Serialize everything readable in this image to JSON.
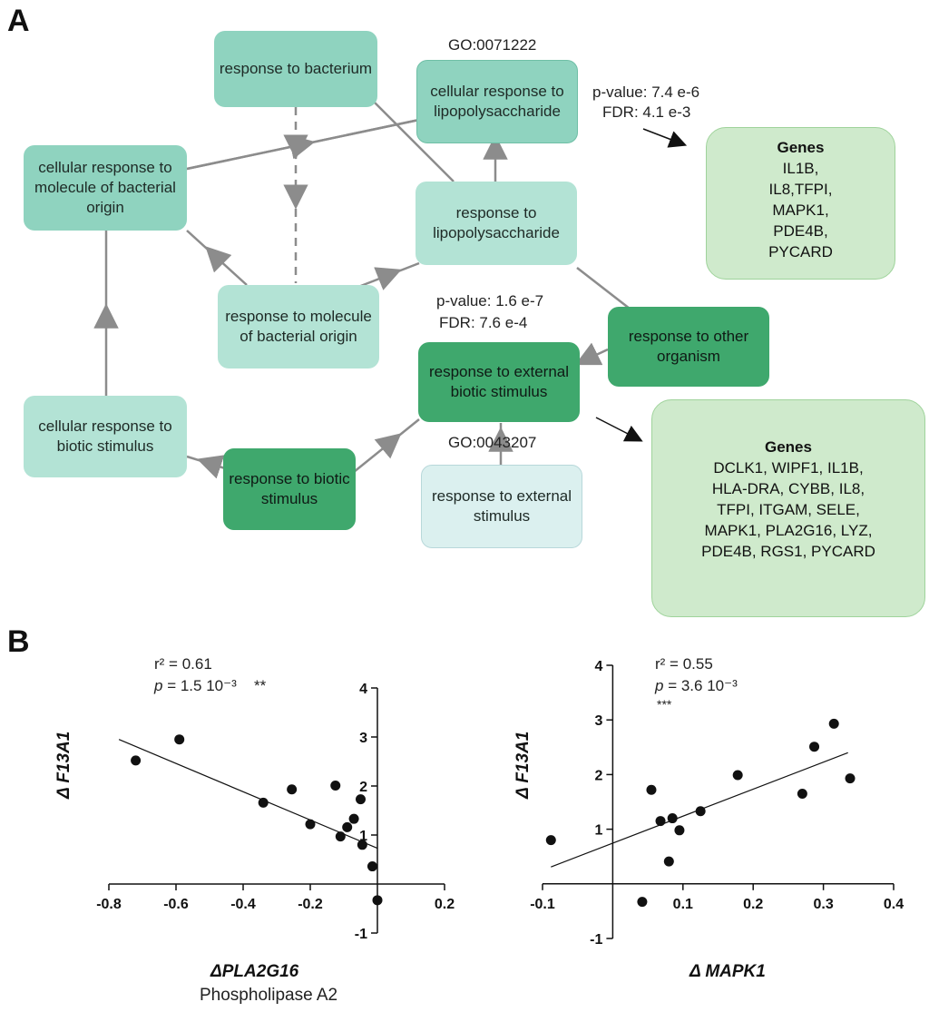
{
  "panel_a": {
    "letter": "A",
    "nodes": {
      "response_to_bacterium": "response to bacterium",
      "cellular_response_lps": "cellular response to lipopolysaccharide",
      "cellular_response_bacterial": "cellular response to molecule of bacterial origin",
      "response_lps": "response to lipopolysaccharide",
      "response_molecule_bacterial": "response to molecule of bacterial origin",
      "response_other_organism": "response to other organism",
      "response_external_biotic": "response to external biotic stimulus",
      "cellular_response_biotic": "cellular response to biotic stimulus",
      "response_biotic": "response to biotic stimulus",
      "response_external": "response to external stimulus"
    },
    "go_top": "GO:0071222",
    "go_bottom": "GO:0043207",
    "stats_top": {
      "pvalue": "p-value: 7.4 e-6",
      "fdr": "FDR: 4.1  e-3"
    },
    "stats_mid": {
      "pvalue": "p-value: 1.6 e-7",
      "fdr": "FDR: 7.6  e-4"
    },
    "genes_top": {
      "title": "Genes",
      "lines": [
        "IL1B,",
        "IL8,TFPI,",
        "MAPK1,",
        "PDE4B,",
        "PYCARD"
      ]
    },
    "genes_bottom": {
      "title": "Genes",
      "lines": [
        "DCLK1, WIPF1, IL1B,",
        "HLA-DRA, CYBB, IL8,",
        "TFPI, ITGAM, SELE,",
        "MAPK1, PLA2G16, LYZ,",
        "PDE4B, RGS1, PYCARD"
      ]
    },
    "colors": {
      "node_medium": "#8fd3bf",
      "node_light": "#b3e3d5",
      "node_pale": "#dbf0ef",
      "node_dark": "#3fa86d",
      "edge": "#8c8c8c"
    }
  },
  "panel_b": {
    "letter": "B",
    "chart_data": [
      {
        "type": "scatter",
        "title": "",
        "xlabel": "ΔPLA2G16",
        "xlabel_sub": "Phospholipase A2",
        "ylabel": "Δ F13A1",
        "xlim": [
          -0.8,
          0.2
        ],
        "ylim": [
          -1,
          4
        ],
        "xticks": [
          "-0.8",
          "-0.6",
          "-0.4",
          "-0.2",
          "0.2"
        ],
        "xtick_values": [
          -0.8,
          -0.6,
          -0.4,
          -0.2,
          0.2
        ],
        "yticks": [
          "4",
          "3",
          "2",
          "1",
          "-1"
        ],
        "ytick_values": [
          4,
          3,
          2,
          1,
          -1
        ],
        "points": [
          [
            -0.72,
            2.52
          ],
          [
            -0.59,
            2.95
          ],
          [
            -0.34,
            1.66
          ],
          [
            -0.255,
            1.93
          ],
          [
            -0.2,
            1.22
          ],
          [
            -0.125,
            2.01
          ],
          [
            -0.11,
            0.97
          ],
          [
            -0.09,
            1.16
          ],
          [
            -0.07,
            1.33
          ],
          [
            -0.045,
            0.8
          ],
          [
            -0.05,
            1.73
          ],
          [
            -0.015,
            0.36
          ],
          [
            0.0,
            -0.33
          ]
        ],
        "fit": [
          [
            -0.77,
            2.95
          ],
          [
            0.0,
            0.73
          ]
        ],
        "r2": "r² = 0.61",
        "p": "p = 1.5 10⁻³",
        "sig": "**"
      },
      {
        "type": "scatter",
        "title": "",
        "xlabel": "Δ MAPK1",
        "ylabel": "Δ F13A1",
        "xlim": [
          -0.1,
          0.4
        ],
        "ylim": [
          -1,
          4
        ],
        "xticks": [
          "-0.1",
          "0.1",
          "0.2",
          "0.3",
          "0.4"
        ],
        "xtick_values": [
          -0.1,
          0.1,
          0.2,
          0.3,
          0.4
        ],
        "yticks": [
          "4",
          "3",
          "2",
          "1",
          "-1"
        ],
        "ytick_values": [
          4,
          3,
          2,
          1,
          -1
        ],
        "points": [
          [
            -0.088,
            0.8
          ],
          [
            0.042,
            -0.33
          ],
          [
            0.055,
            1.72
          ],
          [
            0.068,
            1.15
          ],
          [
            0.08,
            0.41
          ],
          [
            0.085,
            1.2
          ],
          [
            0.095,
            0.98
          ],
          [
            0.125,
            1.33
          ],
          [
            0.178,
            1.99
          ],
          [
            0.27,
            1.65
          ],
          [
            0.287,
            2.51
          ],
          [
            0.315,
            2.93
          ],
          [
            0.338,
            1.93
          ]
        ],
        "fit": [
          [
            -0.088,
            0.31
          ],
          [
            0.335,
            2.4
          ]
        ],
        "r2": "r² = 0.55",
        "p": "p = 3.6 10⁻³",
        "sig": "***"
      }
    ]
  }
}
